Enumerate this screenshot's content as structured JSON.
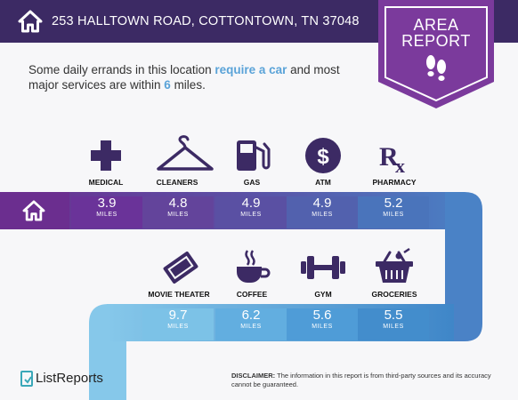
{
  "header": {
    "address": "253 HALLTOWN ROAD, COTTONTOWN, TN 37048",
    "home_icon": "home-icon",
    "background": "#3c2a64"
  },
  "badge": {
    "line1": "AREA",
    "line2": "REPORT",
    "icon": "footprints-icon",
    "color": "#7b3a9c"
  },
  "intro": {
    "part1": "Some daily errands in this location ",
    "highlight1": "require a car",
    "part2": " and most major services are within ",
    "highlight2": "6",
    "part3": " miles."
  },
  "services_top": [
    {
      "label": "MEDICAL",
      "value": "3.9",
      "unit": "MILES",
      "icon": "medical-cross-icon",
      "color": "#6b2e8f"
    },
    {
      "label": "CLEANERS",
      "value": "4.8",
      "unit": "MILES",
      "icon": "hanger-icon",
      "color": "#6a3f96"
    },
    {
      "label": "GAS",
      "value": "4.9",
      "unit": "MILES",
      "icon": "gas-pump-icon",
      "color": "#5c4ba0"
    },
    {
      "label": "ATM",
      "value": "4.9",
      "unit": "MILES",
      "icon": "dollar-icon",
      "color": "#5460ad"
    },
    {
      "label": "PHARMACY",
      "value": "5.2",
      "unit": "MILES",
      "icon": "rx-icon",
      "color": "#4a74bb"
    }
  ],
  "services_bottom": [
    {
      "label": "MOVIE THEATER",
      "value": "9.7",
      "unit": "MILES",
      "icon": "ticket-icon",
      "color": "#7ac0e6"
    },
    {
      "label": "COFFEE",
      "value": "6.2",
      "unit": "MILES",
      "icon": "coffee-icon",
      "color": "#5eabdf"
    },
    {
      "label": "GYM",
      "value": "5.6",
      "unit": "MILES",
      "icon": "dumbbell-icon",
      "color": "#4c9ad6"
    },
    {
      "label": "GROCERIES",
      "value": "5.5",
      "unit": "MILES",
      "icon": "grocery-basket-icon",
      "color": "#418bcb"
    }
  ],
  "footer": {
    "brand": "ListReports",
    "brand_icon": "listreports-logo-icon",
    "disclaimer_label": "DISCLAIMER:",
    "disclaimer_text": " The information in this report is from third-party sources and its accuracy cannot be guaranteed."
  }
}
